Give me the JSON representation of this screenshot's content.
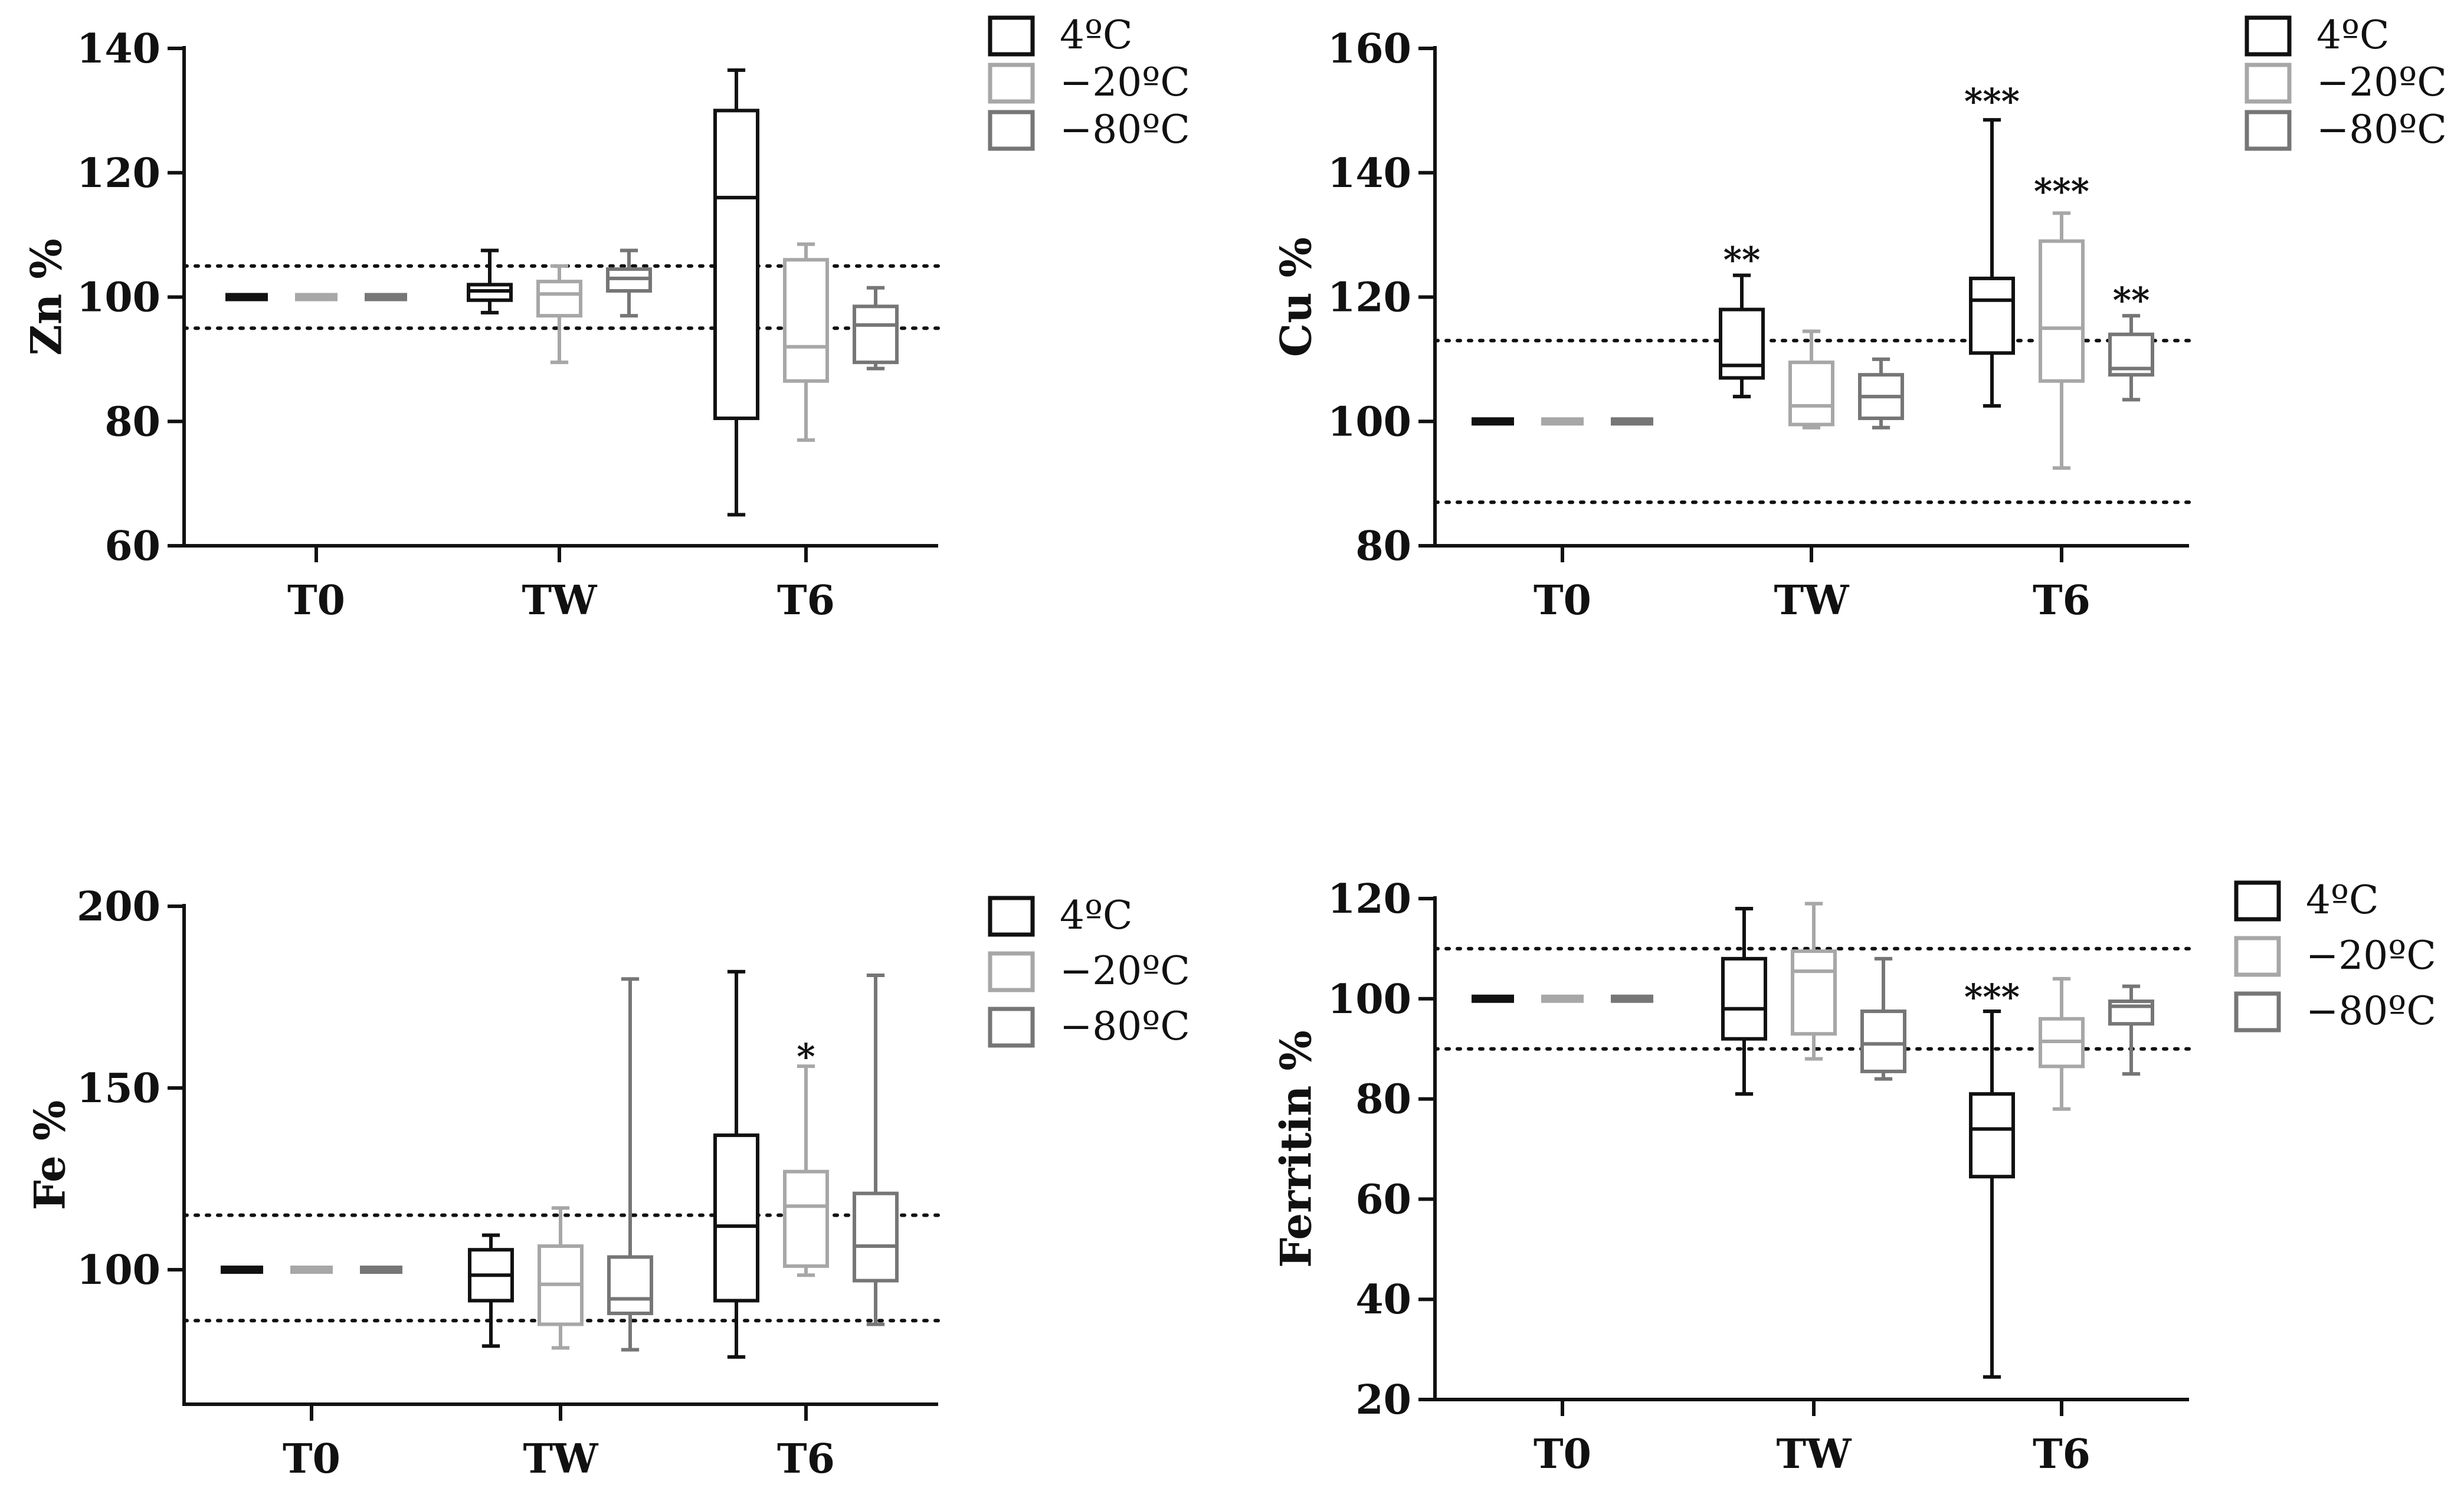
{
  "figure": {
    "legend_labels": [
      "4ºC",
      "−20ºC",
      "−80ºC"
    ],
    "series_colors": [
      "#111111",
      "#a7a7a7",
      "#767676"
    ],
    "categories": [
      "T0",
      "TW",
      "T6"
    ]
  },
  "chart_data": [
    {
      "type": "box",
      "ylabel": "Zn %",
      "xlabel": "",
      "ylim": [
        60,
        140
      ],
      "yticks": [
        60,
        80,
        100,
        120,
        140
      ],
      "categories": [
        "T0",
        "TW",
        "T6"
      ],
      "reference_lines": [
        95,
        105
      ],
      "legend_position": "top-right",
      "series": [
        {
          "name": "4ºC",
          "boxes": [
            {
              "min": 100,
              "q1": 100,
              "median": 100,
              "q3": 100,
              "max": 100
            },
            {
              "min": 97.5,
              "q1": 99.5,
              "median": 101,
              "q3": 102,
              "max": 107.5
            },
            {
              "min": 65,
              "q1": 80.5,
              "median": 116,
              "q3": 130,
              "max": 136.5
            }
          ]
        },
        {
          "name": "−20ºC",
          "boxes": [
            {
              "min": 100,
              "q1": 100,
              "median": 100,
              "q3": 100,
              "max": 100
            },
            {
              "min": 89.5,
              "q1": 97,
              "median": 100.5,
              "q3": 102.5,
              "max": 105
            },
            {
              "min": 77,
              "q1": 86.5,
              "median": 92,
              "q3": 106,
              "max": 108.5
            }
          ]
        },
        {
          "name": "−80ºC",
          "boxes": [
            {
              "min": 100,
              "q1": 100,
              "median": 100,
              "q3": 100,
              "max": 100
            },
            {
              "min": 97,
              "q1": 101,
              "median": 103,
              "q3": 104.5,
              "max": 107.5
            },
            {
              "min": 88.5,
              "q1": 89.5,
              "median": 95.5,
              "q3": 98.5,
              "max": 101.5
            }
          ]
        }
      ],
      "annotations": []
    },
    {
      "type": "box",
      "ylabel": "Cu %",
      "xlabel": "",
      "ylim": [
        80,
        160
      ],
      "yticks": [
        80,
        100,
        120,
        140,
        160
      ],
      "categories": [
        "T0",
        "TW",
        "T6"
      ],
      "reference_lines": [
        87,
        113
      ],
      "legend_position": "top-right",
      "series": [
        {
          "name": "4ºC",
          "boxes": [
            {
              "min": 100,
              "q1": 100,
              "median": 100,
              "q3": 100,
              "max": 100
            },
            {
              "min": 104,
              "q1": 107,
              "median": 109,
              "q3": 118,
              "max": 123.5
            },
            {
              "min": 102.5,
              "q1": 111,
              "median": 119.5,
              "q3": 123,
              "max": 148.5
            }
          ]
        },
        {
          "name": "−20ºC",
          "boxes": [
            {
              "min": 100,
              "q1": 100,
              "median": 100,
              "q3": 100,
              "max": 100
            },
            {
              "min": 99,
              "q1": 99.5,
              "median": 102.5,
              "q3": 109.5,
              "max": 114.5
            },
            {
              "min": 92.5,
              "q1": 106.5,
              "median": 115,
              "q3": 129,
              "max": 133.5
            }
          ]
        },
        {
          "name": "−80ºC",
          "boxes": [
            {
              "min": 100,
              "q1": 100,
              "median": 100,
              "q3": 100,
              "max": 100
            },
            {
              "min": 99,
              "q1": 100.5,
              "median": 104,
              "q3": 107.5,
              "max": 110
            },
            {
              "min": 103.5,
              "q1": 107.5,
              "median": 108.5,
              "q3": 114,
              "max": 117
            }
          ]
        }
      ],
      "annotations": [
        {
          "category": "TW",
          "series": "4ºC",
          "text": "**",
          "value": 126.5
        },
        {
          "category": "T6",
          "series": "4ºC",
          "text": "***",
          "value": 152
        },
        {
          "category": "T6",
          "series": "−20ºC",
          "text": "***",
          "value": 137.5
        },
        {
          "category": "T6",
          "series": "−80ºC",
          "text": "**",
          "value": 120
        }
      ]
    },
    {
      "type": "box",
      "ylabel": "Fe %",
      "xlabel": "",
      "ylim": [
        63,
        200
      ],
      "yticks": [
        100,
        150,
        200
      ],
      "categories": [
        "T0",
        "TW",
        "T6"
      ],
      "reference_lines": [
        86,
        115
      ],
      "legend_position": "top-right",
      "series": [
        {
          "name": "4ºC",
          "boxes": [
            {
              "min": 100,
              "q1": 100,
              "median": 100,
              "q3": 100,
              "max": 100
            },
            {
              "min": 79,
              "q1": 91.5,
              "median": 98.5,
              "q3": 105.5,
              "max": 109.5
            },
            {
              "min": 76,
              "q1": 91.5,
              "median": 112,
              "q3": 137,
              "max": 182
            }
          ]
        },
        {
          "name": "−20ºC",
          "boxes": [
            {
              "min": 100,
              "q1": 100,
              "median": 100,
              "q3": 100,
              "max": 100
            },
            {
              "min": 78.5,
              "q1": 85,
              "median": 96,
              "q3": 106.5,
              "max": 117
            },
            {
              "min": 98.5,
              "q1": 101,
              "median": 117.5,
              "q3": 127,
              "max": 156
            }
          ]
        },
        {
          "name": "−80ºC",
          "boxes": [
            {
              "min": 100,
              "q1": 100,
              "median": 100,
              "q3": 100,
              "max": 100
            },
            {
              "min": 78,
              "q1": 88,
              "median": 92,
              "q3": 103.5,
              "max": 180
            },
            {
              "min": 85,
              "q1": 97,
              "median": 106.5,
              "q3": 121,
              "max": 181
            }
          ]
        }
      ],
      "annotations": [
        {
          "category": "T6",
          "series": "−20ºC",
          "text": "*",
          "value": 159.5
        }
      ]
    },
    {
      "type": "box",
      "ylabel": "Ferritin %",
      "xlabel": "",
      "ylim": [
        20,
        120
      ],
      "yticks": [
        20,
        40,
        60,
        80,
        100,
        120
      ],
      "categories": [
        "T0",
        "TW",
        "T6"
      ],
      "reference_lines": [
        90,
        110
      ],
      "legend_position": "top-right",
      "series": [
        {
          "name": "4ºC",
          "boxes": [
            {
              "min": 100,
              "q1": 100,
              "median": 100,
              "q3": 100,
              "max": 100
            },
            {
              "min": 81,
              "q1": 92,
              "median": 98,
              "q3": 108,
              "max": 118
            },
            {
              "min": 24.5,
              "q1": 64.5,
              "median": 74,
              "q3": 81,
              "max": 97.5
            }
          ]
        },
        {
          "name": "−20ºC",
          "boxes": [
            {
              "min": 100,
              "q1": 100,
              "median": 100,
              "q3": 100,
              "max": 100
            },
            {
              "min": 88,
              "q1": 93,
              "median": 105.5,
              "q3": 109.5,
              "max": 119
            },
            {
              "min": 78,
              "q1": 86.5,
              "median": 91.5,
              "q3": 96,
              "max": 104
            }
          ]
        },
        {
          "name": "−80ºC",
          "boxes": [
            {
              "min": 100,
              "q1": 100,
              "median": 100,
              "q3": 100,
              "max": 100
            },
            {
              "min": 84,
              "q1": 85.5,
              "median": 91,
              "q3": 97.5,
              "max": 108
            },
            {
              "min": 85,
              "q1": 95,
              "median": 98.5,
              "q3": 99.5,
              "max": 102.5
            }
          ]
        }
      ],
      "annotations": [
        {
          "category": "T6",
          "series": "4ºC",
          "text": "***",
          "value": 101
        }
      ]
    }
  ]
}
